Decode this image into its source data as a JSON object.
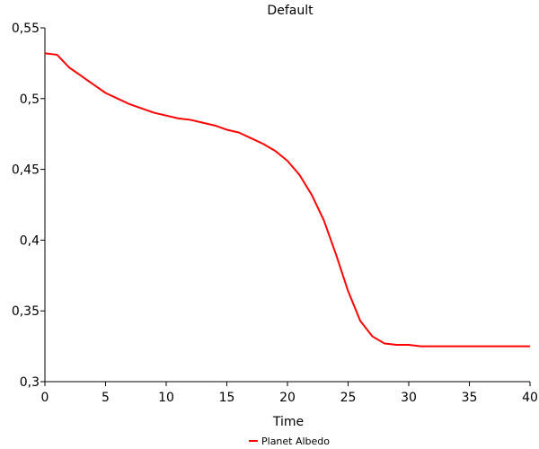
{
  "chart_data": {
    "type": "line",
    "title": "Default",
    "xlabel": "Time",
    "ylabel": "",
    "xlim": [
      0,
      40
    ],
    "ylim": [
      0.3,
      0.55
    ],
    "x_ticks": [
      0,
      5,
      10,
      15,
      20,
      25,
      30,
      35,
      40
    ],
    "x_tick_labels": [
      "0",
      "5",
      "10",
      "15",
      "20",
      "25",
      "30",
      "35",
      "40"
    ],
    "y_ticks": [
      0.3,
      0.35,
      0.4,
      0.45,
      0.5,
      0.55
    ],
    "y_tick_labels": [
      "0,3",
      "0,35",
      "0,4",
      "0,45",
      "0,5",
      "0,55"
    ],
    "grid": false,
    "legend_position": "bottom-center",
    "series": [
      {
        "name": "Planet Albedo",
        "color": "#ff0000",
        "x": [
          0,
          1,
          2,
          3,
          4,
          5,
          6,
          7,
          8,
          9,
          10,
          11,
          12,
          13,
          14,
          15,
          16,
          17,
          18,
          19,
          20,
          21,
          22,
          23,
          24,
          25,
          26,
          27,
          28,
          29,
          30,
          31,
          32,
          33,
          34,
          35,
          36,
          37,
          38,
          39,
          40
        ],
        "y": [
          0.532,
          0.531,
          0.522,
          0.516,
          0.51,
          0.504,
          0.5,
          0.496,
          0.493,
          0.49,
          0.488,
          0.486,
          0.485,
          0.483,
          0.481,
          0.478,
          0.476,
          0.472,
          0.468,
          0.463,
          0.456,
          0.446,
          0.432,
          0.414,
          0.39,
          0.364,
          0.343,
          0.332,
          0.327,
          0.326,
          0.326,
          0.325,
          0.325,
          0.325,
          0.325,
          0.325,
          0.325,
          0.325,
          0.325,
          0.325,
          0.325
        ]
      }
    ]
  }
}
